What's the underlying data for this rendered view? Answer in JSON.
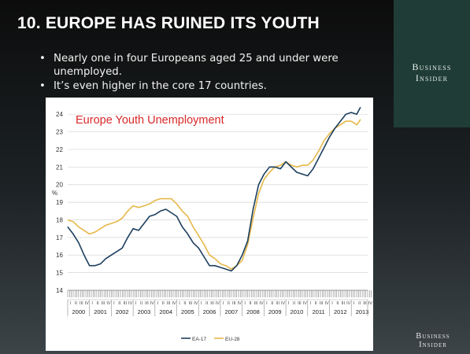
{
  "slide": {
    "title": "10.  EUROPE HAS RUINED ITS YOUTH",
    "bullets": [
      "Nearly one in four Europeans aged 25 and under were unemployed.",
      "It’s even higher in the core 17 countries."
    ],
    "bullet_symbol": "•"
  },
  "brand": {
    "top_logo_line1": "Business",
    "top_logo_line2": "Insider",
    "bottom_logo_line1": "Business",
    "bottom_logo_line2": "Insider"
  },
  "chart_data": {
    "type": "line",
    "title": "Europe Youth Unemployment",
    "ylabel": "%",
    "xlabel": "",
    "ylim": [
      14,
      24.5
    ],
    "yticks": [
      14,
      15,
      16,
      17,
      18,
      19,
      20,
      21,
      22,
      23,
      24
    ],
    "x_years": [
      "2000",
      "2001",
      "2002",
      "2003",
      "2004",
      "2005",
      "2006",
      "2007",
      "2008",
      "2009",
      "2010",
      "2011",
      "2012",
      "2013"
    ],
    "quarter_labels": [
      "I",
      "II",
      "III",
      "IV"
    ],
    "grid": true,
    "legend_position": "bottom-center",
    "colors": {
      "title": "#d8282a",
      "ea17": "#1c3f5e",
      "eu28": "#e6b84a",
      "grid": "#d6d6d6"
    },
    "x": [
      2000.0,
      2000.25,
      2000.5,
      2000.75,
      2001.0,
      2001.25,
      2001.5,
      2001.75,
      2002.0,
      2002.25,
      2002.5,
      2002.75,
      2003.0,
      2003.25,
      2003.5,
      2003.75,
      2004.0,
      2004.25,
      2004.5,
      2004.75,
      2005.0,
      2005.25,
      2005.5,
      2005.75,
      2006.0,
      2006.25,
      2006.5,
      2006.75,
      2007.0,
      2007.25,
      2007.5,
      2007.75,
      2008.0,
      2008.25,
      2008.5,
      2008.75,
      2009.0,
      2009.25,
      2009.5,
      2009.75,
      2010.0,
      2010.25,
      2010.5,
      2010.75,
      2011.0,
      2011.25,
      2011.5,
      2011.75,
      2012.0,
      2012.25,
      2012.5,
      2012.75,
      2013.0,
      2013.25,
      2013.42
    ],
    "series": [
      {
        "name": "EA-17",
        "values": [
          17.6,
          17.2,
          16.7,
          16.0,
          15.4,
          15.4,
          15.5,
          15.8,
          16.0,
          16.2,
          16.4,
          17.0,
          17.5,
          17.4,
          17.8,
          18.2,
          18.3,
          18.5,
          18.6,
          18.4,
          18.2,
          17.6,
          17.2,
          16.7,
          16.4,
          15.9,
          15.4,
          15.4,
          15.3,
          15.2,
          15.1,
          15.4,
          16.0,
          16.8,
          18.6,
          20.0,
          20.6,
          21.0,
          21.0,
          20.9,
          21.3,
          21.0,
          20.7,
          20.6,
          20.5,
          20.9,
          21.5,
          22.1,
          22.7,
          23.2,
          23.6,
          24.0,
          24.1,
          24.0,
          24.4
        ]
      },
      {
        "name": "EU-28",
        "values": [
          18.0,
          17.9,
          17.6,
          17.4,
          17.2,
          17.3,
          17.5,
          17.7,
          17.8,
          17.9,
          18.1,
          18.5,
          18.8,
          18.7,
          18.8,
          18.9,
          19.1,
          19.2,
          19.2,
          19.2,
          18.9,
          18.5,
          18.2,
          17.6,
          17.1,
          16.6,
          16.0,
          15.8,
          15.5,
          15.4,
          15.2,
          15.4,
          15.7,
          16.6,
          18.1,
          19.5,
          20.3,
          20.7,
          21.0,
          21.1,
          21.3,
          21.1,
          21.0,
          21.1,
          21.1,
          21.4,
          21.9,
          22.5,
          22.9,
          23.2,
          23.4,
          23.6,
          23.6,
          23.4,
          23.7
        ]
      }
    ]
  }
}
